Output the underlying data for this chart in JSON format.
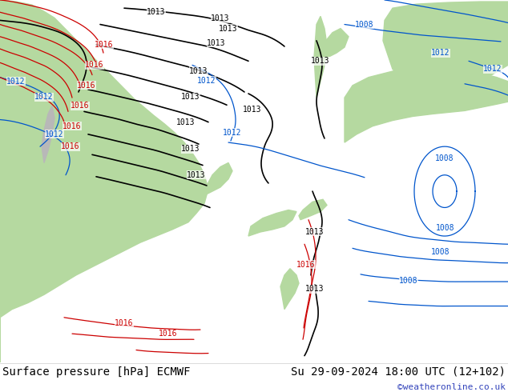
{
  "title_left": "Surface pressure [hPa] ECMWF",
  "title_right": "Su 29-09-2024 18:00 UTC (12+102)",
  "watermark": "©weatheronline.co.uk",
  "bg_color": "#ffffff",
  "land_green": "#b5d9a0",
  "land_gray": "#b0b0b0",
  "ocean_white": "#e8e8e8",
  "bottom_bar_color": "#f0f0f0",
  "contour_black": "#000000",
  "contour_blue": "#0055cc",
  "contour_red": "#cc0000",
  "label_black": "#000000",
  "label_blue": "#0055cc",
  "label_red": "#cc0000",
  "watermark_color": "#3344bb",
  "font_size_bottom": 10,
  "font_size_label": 7,
  "fig_width": 6.34,
  "fig_height": 4.9,
  "dpi": 100
}
